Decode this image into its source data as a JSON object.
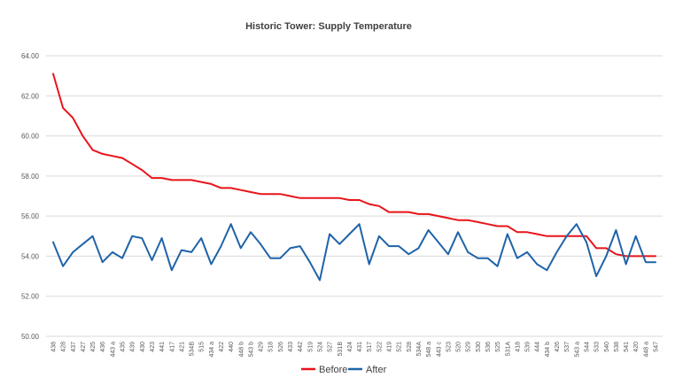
{
  "chart_data": {
    "type": "line",
    "title": "Historic Tower: Supply Temperature",
    "xlabel": "",
    "ylabel": "",
    "ylim": [
      50,
      64
    ],
    "yticks": [
      "50.00",
      "52.00",
      "54.00",
      "56.00",
      "58.00",
      "60.00",
      "62.00",
      "64.00"
    ],
    "grid": true,
    "legend_position": "bottom",
    "categories": [
      "438",
      "428",
      "437",
      "427",
      "425",
      "436",
      "443 a",
      "435",
      "439",
      "430",
      "423",
      "441",
      "417",
      "421",
      "534B",
      "515",
      "434 a",
      "422",
      "440",
      "448 b",
      "543 b",
      "429",
      "518",
      "526",
      "433",
      "442",
      "519",
      "524",
      "527",
      "531B",
      "424",
      "431",
      "517",
      "522",
      "419",
      "521",
      "528",
      "534A",
      "548 a",
      "443 c",
      "523",
      "520",
      "529",
      "530",
      "536",
      "525",
      "531A",
      "418",
      "539",
      "444",
      "434 b",
      "426",
      "537",
      "543 a",
      "544",
      "533",
      "540",
      "538",
      "541",
      "420",
      "448 a",
      "547"
    ],
    "series": [
      {
        "name": "Before",
        "color": "#e8141a",
        "values": [
          63.1,
          61.4,
          60.9,
          60.0,
          59.3,
          59.1,
          59.0,
          58.9,
          58.6,
          58.3,
          57.9,
          57.9,
          57.8,
          57.8,
          57.8,
          57.7,
          57.6,
          57.4,
          57.4,
          57.3,
          57.2,
          57.1,
          57.1,
          57.1,
          57.0,
          56.9,
          56.9,
          56.9,
          56.9,
          56.9,
          56.8,
          56.8,
          56.6,
          56.5,
          56.2,
          56.2,
          56.2,
          56.1,
          56.1,
          56.0,
          55.9,
          55.8,
          55.8,
          55.7,
          55.6,
          55.5,
          55.5,
          55.2,
          55.2,
          55.1,
          55.0,
          55.0,
          55.0,
          55.0,
          55.0,
          54.4,
          54.4,
          54.1,
          54.0,
          54.0,
          54.0,
          54.0
        ]
      },
      {
        "name": "After",
        "color": "#1f63a8",
        "values": [
          54.7,
          53.5,
          54.2,
          54.6,
          55.0,
          53.7,
          54.2,
          53.9,
          55.0,
          54.9,
          53.8,
          54.9,
          53.3,
          54.3,
          54.2,
          54.9,
          53.6,
          54.5,
          55.6,
          54.4,
          55.2,
          54.6,
          53.9,
          53.9,
          54.4,
          54.5,
          53.7,
          52.8,
          55.1,
          54.6,
          55.1,
          55.6,
          53.6,
          55.0,
          54.5,
          54.5,
          54.1,
          54.4,
          55.3,
          54.7,
          54.1,
          55.2,
          54.2,
          53.9,
          53.9,
          53.5,
          55.1,
          53.9,
          54.2,
          53.6,
          53.3,
          54.2,
          55.0,
          55.6,
          54.7,
          53.0,
          54.0,
          55.3,
          53.6,
          55.0,
          53.7,
          53.7
        ]
      }
    ]
  }
}
